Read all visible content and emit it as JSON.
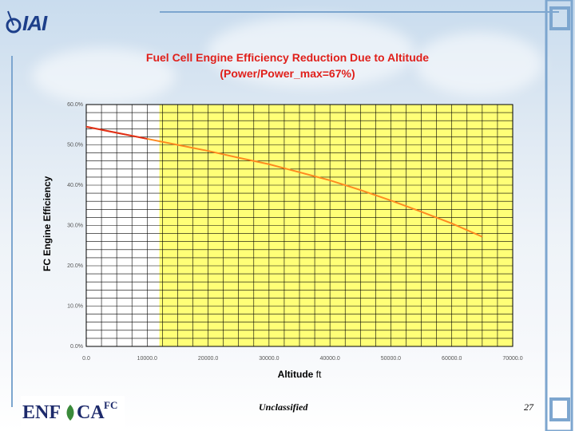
{
  "colors": {
    "title": "#e0201b",
    "plot_fill": "#ffff77",
    "line": "#ff8a1f",
    "grid": "#000000",
    "frame": "#7da6cf"
  },
  "slide": {
    "logo_text": "IAI",
    "footer_logo": {
      "enf": "ENF",
      "ca": "CA",
      "fc": "FC"
    },
    "classification": "Unclassified",
    "page_number": "27"
  },
  "chart_data": {
    "type": "line",
    "title": "Fuel Cell Engine Efficiency Reduction Due to Altitude",
    "subtitle": "(Power/Power_max=67%)",
    "xlabel_bold": "Altitude",
    "xlabel_rest": " ft",
    "ylabel": "FC Engine Efficiency",
    "xlim": [
      0,
      70000
    ],
    "ylim": [
      0,
      0.6
    ],
    "x_ticks": [
      0,
      10000,
      20000,
      30000,
      40000,
      50000,
      60000,
      70000
    ],
    "x_tick_labels": [
      "0.0",
      "10000.0",
      "20000.0",
      "30000.0",
      "40000.0",
      "50000.0",
      "60000.0",
      "70000.0"
    ],
    "y_ticks": [
      0,
      0.1,
      0.2,
      0.3,
      0.4,
      0.5,
      0.6
    ],
    "y_tick_labels": [
      "0.0%",
      "10.0%",
      "20.0%",
      "30.0%",
      "40.0%",
      "50.0%",
      "60.0%"
    ],
    "highlight_x_from": 12000,
    "series": [
      {
        "x": [
          0,
          5000,
          10000,
          15000,
          20000,
          25000,
          30000,
          35000,
          40000,
          45000,
          50000,
          55000,
          60000,
          65000
        ],
        "y": [
          0.545,
          0.53,
          0.515,
          0.5,
          0.485,
          0.468,
          0.452,
          0.432,
          0.412,
          0.388,
          0.362,
          0.334,
          0.305,
          0.272
        ]
      }
    ],
    "grid": true
  }
}
